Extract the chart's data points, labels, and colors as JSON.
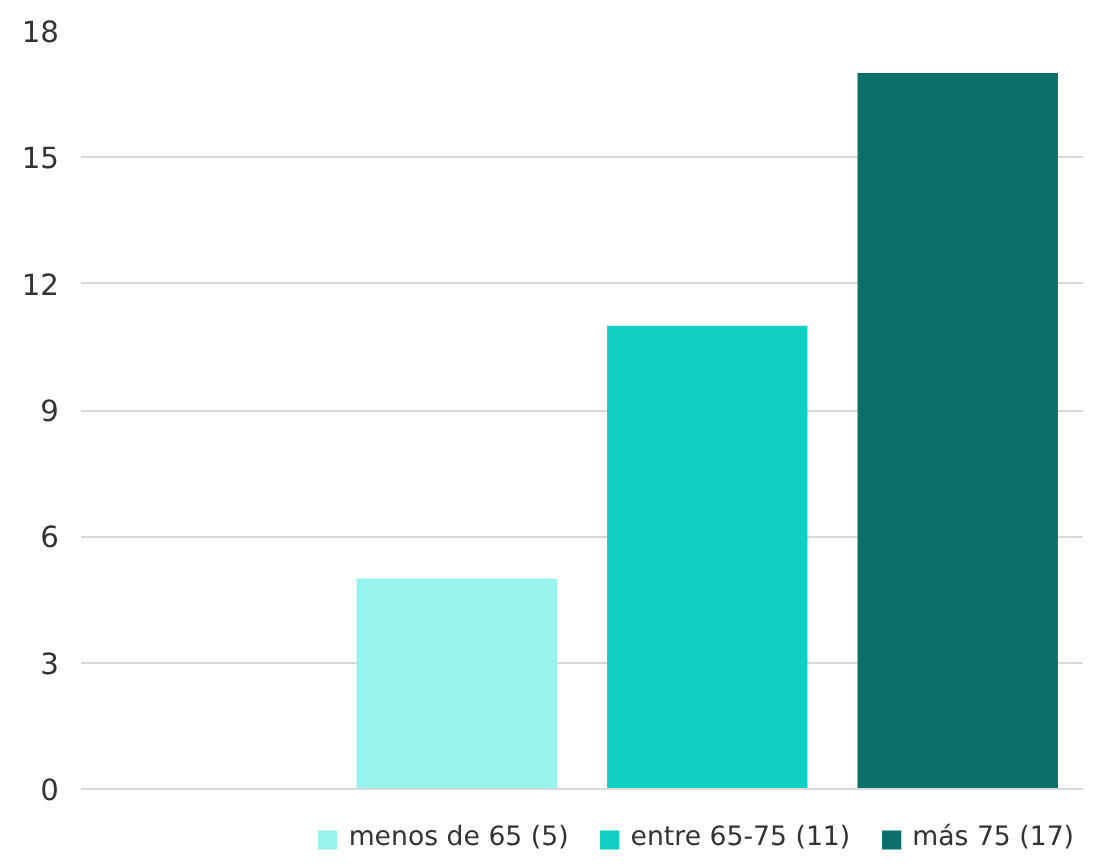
{
  "chart_data": {
    "type": "bar",
    "categories": [
      null,
      null,
      null,
      null
    ],
    "series": [
      {
        "name": "menos de 65 (5)",
        "color": "#97f3ee",
        "values": [
          null,
          5,
          null,
          null
        ]
      },
      {
        "name": "entre 65-75 (11)",
        "color": "#11cfc5",
        "values": [
          null,
          null,
          11,
          null
        ]
      },
      {
        "name": "más 75 (17)",
        "color": "#0b6f6a",
        "values": [
          null,
          null,
          null,
          17
        ]
      }
    ],
    "ylim": [
      0,
      18
    ],
    "yticks": [
      0,
      3,
      6,
      9,
      12,
      15,
      18
    ],
    "grid": "y",
    "legend": "bottom"
  }
}
